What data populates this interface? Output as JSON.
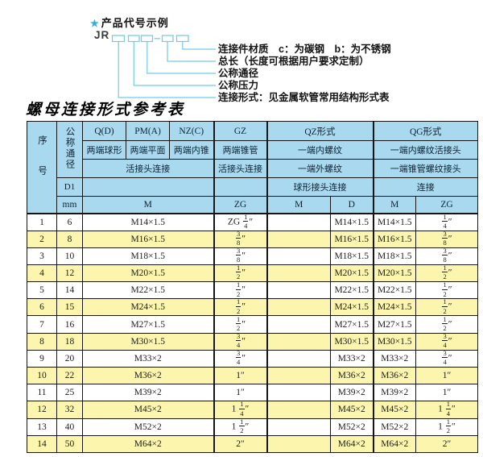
{
  "diagram": {
    "star": "★",
    "heading": "产品代号示例",
    "code_prefix": "JR",
    "labels": [
      "连接件材质　c：为碳钢　b：为不锈钢",
      "总长（长度可根据用户要求定制）",
      "公称通径",
      "公称压力",
      "连接形式：见金属软管常用结构形式表"
    ]
  },
  "table": {
    "title": "螺母连接形式参考表",
    "header": {
      "col_serial": "序号",
      "col_diameter": "公称通径",
      "d1": "D1",
      "mm": "mm",
      "q": "Q(D)",
      "q_desc": "两端球形",
      "pm": "PM(A)",
      "pm_desc": "两端平面",
      "nz": "NZ(C)",
      "nz_desc": "两端内锥",
      "gz": "GZ",
      "gz_desc": "两端锥管",
      "gz_conn": "活接头连接",
      "gz_unit": "ZG",
      "union_conn": "活接头连接",
      "m_unit": "M",
      "qz": "QZ形式",
      "qz_desc1": "一端内螺纹",
      "qz_desc2": "一端外螺纹",
      "qz_conn": "球形接头连接",
      "qz_m": "M",
      "qz_d": "D",
      "qg": "QG形式",
      "qg_desc1": "一端内螺纹活接头",
      "qg_desc2": "一端锥管螺纹接头",
      "qg_conn": "连接",
      "qg_m": "M",
      "qg_zg": "ZG"
    },
    "rows": [
      {
        "no": "1",
        "dn": "6",
        "m": "M14×1.5",
        "zg": "ZG 1/4″",
        "qz_m": "",
        "qz_d": "M14×1.5",
        "qg_m": "M14×1.5",
        "qg_zg": "1/4″"
      },
      {
        "no": "2",
        "dn": "8",
        "m": "M16×1.5",
        "zg": "3/8″",
        "qz_m": "",
        "qz_d": "M16×1.5",
        "qg_m": "M16×1.5",
        "qg_zg": "3/8″"
      },
      {
        "no": "3",
        "dn": "10",
        "m": "M18×1.5",
        "zg": "3/8″",
        "qz_m": "",
        "qz_d": "M18×1.5",
        "qg_m": "M18×1.5",
        "qg_zg": "3/8″"
      },
      {
        "no": "4",
        "dn": "12",
        "m": "M20×1.5",
        "zg": "1/2″",
        "qz_m": "",
        "qz_d": "M20×1.5",
        "qg_m": "M20×1.5",
        "qg_zg": "1/2″"
      },
      {
        "no": "5",
        "dn": "14",
        "m": "M22×1.5",
        "zg": "1/2″",
        "qz_m": "",
        "qz_d": "M22×1.5",
        "qg_m": "M22×1.5",
        "qg_zg": "1/2″"
      },
      {
        "no": "6",
        "dn": "15",
        "m": "M24×1.5",
        "zg": "1/2″",
        "qz_m": "",
        "qz_d": "M24×1.5",
        "qg_m": "M24×1.5",
        "qg_zg": "1/2″"
      },
      {
        "no": "7",
        "dn": "16",
        "m": "M27×1.5",
        "zg": "1/2″",
        "qz_m": "",
        "qz_d": "M27×1.5",
        "qg_m": "M27×1.5",
        "qg_zg": "1/2″"
      },
      {
        "no": "8",
        "dn": "18",
        "m": "M30×1.5",
        "zg": "3/4″",
        "qz_m": "",
        "qz_d": "M30×1.5",
        "qg_m": "M30×1.5",
        "qg_zg": "3/4″"
      },
      {
        "no": "9",
        "dn": "20",
        "m": "M33×2",
        "zg": "3/4″",
        "qz_m": "",
        "qz_d": "M33×2",
        "qg_m": "M33×2",
        "qg_zg": "3/4″"
      },
      {
        "no": "10",
        "dn": "22",
        "m": "M36×2",
        "zg": "1″",
        "qz_m": "",
        "qz_d": "M36×2",
        "qg_m": "M36×2",
        "qg_zg": "1″"
      },
      {
        "no": "11",
        "dn": "25",
        "m": "M39×2",
        "zg": "1″",
        "qz_m": "",
        "qz_d": "M39×2",
        "qg_m": "M39×2",
        "qg_zg": "1″"
      },
      {
        "no": "12",
        "dn": "32",
        "m": "M45×2",
        "zg": "1 1/4″",
        "qz_m": "",
        "qz_d": "M45×2",
        "qg_m": "M45×2",
        "qg_zg": "1 1/4″"
      },
      {
        "no": "13",
        "dn": "40",
        "m": "M52×2",
        "zg": "1 1/2″",
        "qz_m": "",
        "qz_d": "M52×2",
        "qg_m": "M52×2",
        "qg_zg": "1 1/2″"
      },
      {
        "no": "14",
        "dn": "50",
        "m": "M64×2",
        "zg": "2″",
        "qz_m": "",
        "qz_d": "M64×2",
        "qg_m": "M64×2",
        "qg_zg": "2″"
      }
    ]
  },
  "colors": {
    "header_blue": "#a9d9ef",
    "row_yellow": "#fbf5ad",
    "diagram_cyan": "#74cce6",
    "border_black": "#151515"
  }
}
